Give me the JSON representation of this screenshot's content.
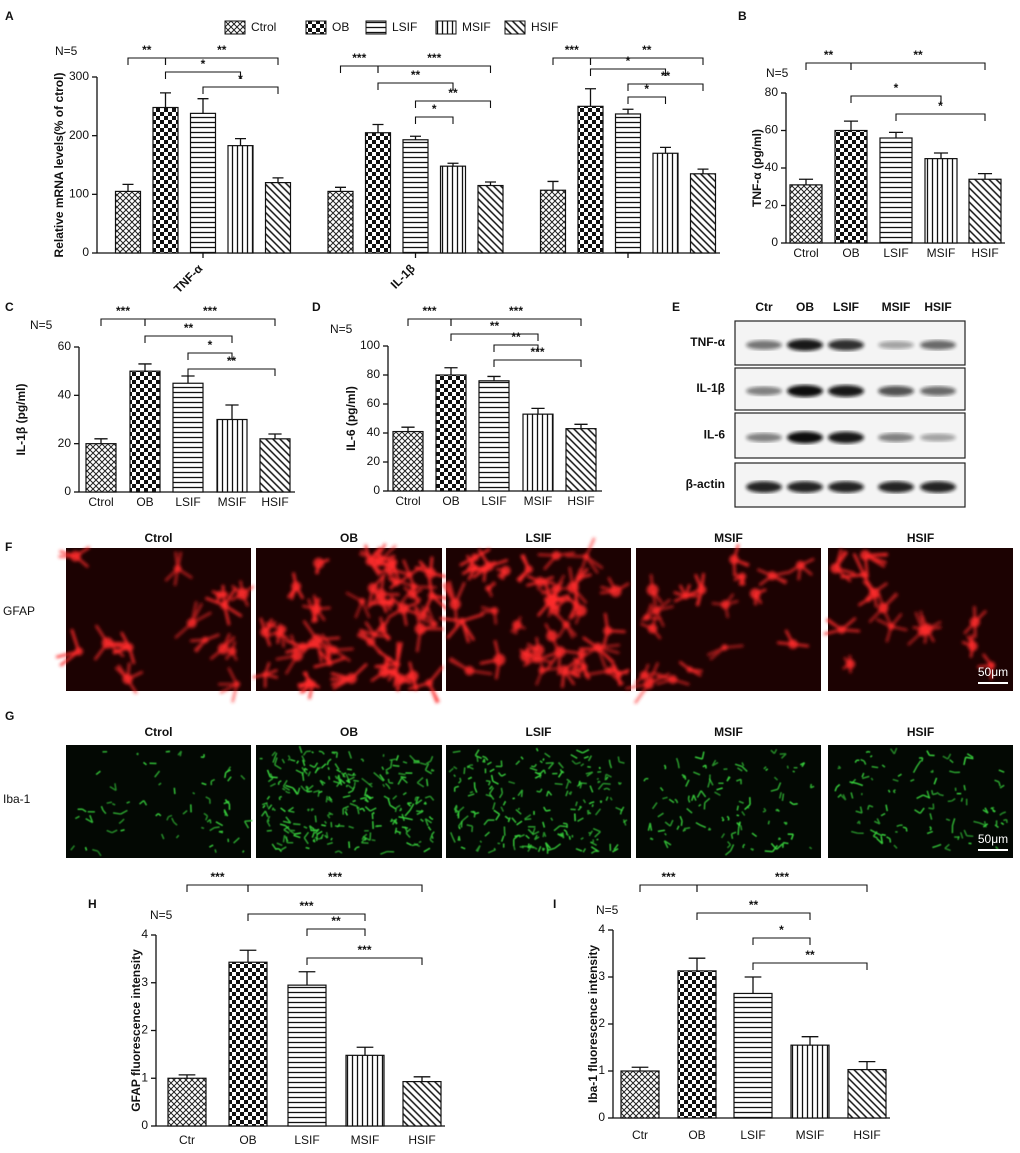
{
  "chart_data": [
    {
      "panel": "A",
      "type": "bar",
      "y_label": "Relative mRNA levels(% of ctrol)",
      "annotation": "N=5",
      "categories": [
        "TNF-α",
        "IL-1β",
        null
      ],
      "series": [
        {
          "name": "Ctrol",
          "pattern": "crosshatch",
          "values": [
            105,
            105,
            107
          ],
          "errors": [
            12,
            7,
            15
          ]
        },
        {
          "name": "OB",
          "pattern": "checker",
          "values": [
            248,
            205,
            250
          ],
          "errors": [
            25,
            14,
            30
          ]
        },
        {
          "name": "LSIF",
          "pattern": "horizontal",
          "values": [
            238,
            193,
            237
          ],
          "errors": [
            25,
            6,
            8
          ]
        },
        {
          "name": "MSIF",
          "pattern": "vertical",
          "values": [
            183,
            148,
            170
          ],
          "errors": [
            12,
            5,
            10
          ]
        },
        {
          "name": "HSIF",
          "pattern": "diagonal",
          "values": [
            120,
            115,
            135
          ],
          "errors": [
            8,
            6,
            8
          ]
        }
      ],
      "ylim": [
        0,
        300
      ],
      "yticks": [
        0,
        100,
        200,
        300
      ],
      "significance": [
        [
          "**",
          "**",
          "*",
          "*"
        ],
        [
          "***",
          "***",
          "**",
          "*",
          "**"
        ],
        [
          "***",
          "**",
          "*",
          "**",
          "*"
        ]
      ]
    },
    {
      "panel": "B",
      "type": "bar",
      "y_label": "TNF-α (pg/ml)",
      "annotation": "N=5",
      "categories": [
        "Ctrol",
        "OB",
        "LSIF",
        "MSIF",
        "HSIF"
      ],
      "values": [
        31,
        60,
        56,
        45,
        34
      ],
      "errors": [
        3,
        5,
        3,
        3,
        3
      ],
      "patterns": [
        "crosshatch",
        "checker",
        "horizontal",
        "vertical",
        "diagonal"
      ],
      "ylim": [
        0,
        80
      ],
      "yticks": [
        0,
        20,
        40,
        60,
        80
      ],
      "significance": [
        "**",
        "**",
        "*",
        "*"
      ]
    },
    {
      "panel": "C",
      "type": "bar",
      "y_label": "IL-1β (pg/ml)",
      "annotation": "N=5",
      "categories": [
        "Ctrol",
        "OB",
        "LSIF",
        "MSIF",
        "HSIF"
      ],
      "values": [
        20,
        50,
        45,
        30,
        22
      ],
      "errors": [
        2,
        3,
        3,
        6,
        2
      ],
      "patterns": [
        "crosshatch",
        "checker",
        "horizontal",
        "vertical",
        "diagonal"
      ],
      "ylim": [
        0,
        60
      ],
      "yticks": [
        0,
        20,
        40,
        60
      ],
      "significance": [
        "***",
        "***",
        "**",
        "*",
        "**"
      ]
    },
    {
      "panel": "D",
      "type": "bar",
      "y_label": "IL-6 (pg/ml)",
      "annotation": "N=5",
      "categories": [
        "Ctrol",
        "OB",
        "LSIF",
        "MSIF",
        "HSIF"
      ],
      "values": [
        41,
        80,
        76,
        53,
        43
      ],
      "errors": [
        3,
        5,
        3,
        4,
        3
      ],
      "patterns": [
        "crosshatch",
        "checker",
        "horizontal",
        "vertical",
        "diagonal"
      ],
      "ylim": [
        0,
        100
      ],
      "yticks": [
        0,
        20,
        40,
        60,
        80,
        100
      ],
      "significance": [
        "***",
        "***",
        "**",
        "**",
        "***"
      ]
    },
    {
      "panel": "H",
      "type": "bar",
      "y_label": "GFAP fluorescence intensity",
      "annotation": "N=5",
      "categories": [
        "Ctr",
        "OB",
        "LSIF",
        "MSIF",
        "HSIF"
      ],
      "values": [
        1.0,
        3.43,
        2.95,
        1.48,
        0.93
      ],
      "errors": [
        0.07,
        0.25,
        0.28,
        0.17,
        0.1
      ],
      "patterns": [
        "crosshatch",
        "checker",
        "horizontal",
        "vertical",
        "diagonal"
      ],
      "ylim": [
        0,
        4
      ],
      "yticks": [
        0,
        1,
        2,
        3,
        4
      ],
      "significance": [
        "***",
        "***",
        "***",
        "**",
        "***"
      ]
    },
    {
      "panel": "I",
      "type": "bar",
      "y_label": "Iba-1 fluorescence intensity",
      "annotation": "N=5",
      "categories": [
        "Ctr",
        "OB",
        "LSIF",
        "MSIF",
        "HSIF"
      ],
      "values": [
        1.0,
        3.13,
        2.65,
        1.55,
        1.03
      ],
      "errors": [
        0.08,
        0.27,
        0.35,
        0.18,
        0.17
      ],
      "patterns": [
        "crosshatch",
        "checker",
        "horizontal",
        "vertical",
        "diagonal"
      ],
      "ylim": [
        0,
        4
      ],
      "yticks": [
        0,
        1,
        2,
        3,
        4
      ],
      "significance": [
        "***",
        "***",
        "**",
        "*",
        "**"
      ]
    }
  ],
  "blot": {
    "panel": "E",
    "columns": [
      "Ctr",
      "OB",
      "LSIF",
      "MSIF",
      "HSIF"
    ],
    "rows": [
      "TNF-α",
      "IL-1β",
      "IL-6",
      "β-actin"
    ]
  },
  "images": [
    {
      "panel": "F",
      "marker": "GFAP",
      "columns": [
        "Ctrol",
        "OB",
        "LSIF",
        "MSIF",
        "HSIF"
      ],
      "scale": "50μm"
    },
    {
      "panel": "G",
      "marker": "Iba-1",
      "columns": [
        "Ctrol",
        "OB",
        "LSIF",
        "MSIF",
        "HSIF"
      ],
      "scale": "50μm"
    }
  ]
}
